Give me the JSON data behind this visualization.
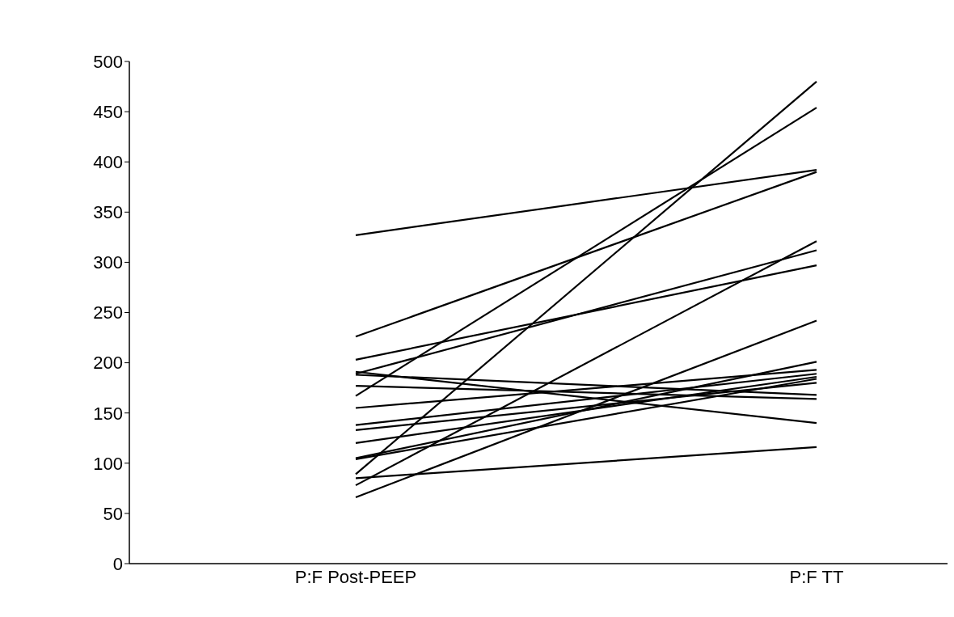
{
  "chart_data": {
    "type": "line",
    "categories": [
      "P:F Post-PEEP",
      "P:F TT"
    ],
    "ylim": [
      0,
      500
    ],
    "yticks": [
      0,
      50,
      100,
      150,
      200,
      250,
      300,
      350,
      400,
      450,
      500
    ],
    "marker": "none",
    "series": [
      {
        "color": "#000000",
        "values": [
          327,
          392
        ]
      },
      {
        "color": "#000000",
        "values": [
          226,
          390
        ]
      },
      {
        "color": "#000000",
        "values": [
          203,
          297
        ]
      },
      {
        "color": "#000000",
        "values": [
          189,
          312
        ]
      },
      {
        "color": "#000000",
        "values": [
          167,
          454
        ]
      },
      {
        "color": "#000000",
        "values": [
          89,
          480
        ]
      },
      {
        "color": "#000000",
        "values": [
          78,
          321
        ]
      },
      {
        "color": "#000000",
        "values": [
          66,
          242
        ]
      },
      {
        "color": "#000000",
        "values": [
          85,
          116
        ]
      },
      {
        "color": "#000000",
        "values": [
          191,
          140
        ]
      },
      {
        "color": "#000000",
        "values": [
          188,
          168
        ]
      },
      {
        "color": "#000000",
        "values": [
          177,
          164
        ]
      },
      {
        "color": "#000000",
        "values": [
          155,
          193
        ]
      },
      {
        "color": "#000000",
        "values": [
          138,
          189
        ]
      },
      {
        "color": "#000000",
        "values": [
          133,
          180
        ]
      },
      {
        "color": "#000000",
        "values": [
          120,
          186
        ]
      },
      {
        "color": "#000000",
        "values": [
          105,
          201
        ]
      },
      {
        "color": "#000000",
        "values": [
          104,
          184
        ]
      }
    ]
  }
}
